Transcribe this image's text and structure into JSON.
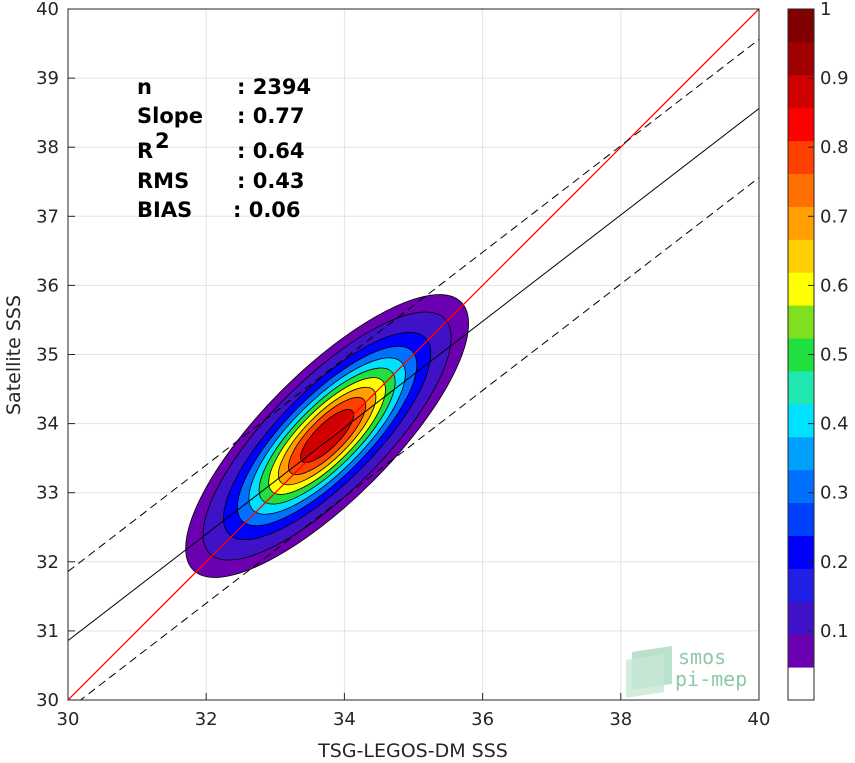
{
  "chart_data": {
    "type": "heatmap",
    "xlabel": "TSG-LEGOS-DM SSS",
    "ylabel": "Satellite SSS",
    "xlim": [
      30,
      40
    ],
    "ylim": [
      30,
      40
    ],
    "xticks": [
      "30",
      "32",
      "34",
      "36",
      "38",
      "40"
    ],
    "yticks": [
      "30",
      "31",
      "32",
      "33",
      "34",
      "35",
      "36",
      "37",
      "38",
      "39",
      "40"
    ],
    "grid": true,
    "stats": [
      {
        "name": "n",
        "value": ": 2394"
      },
      {
        "name": "Slope",
        "value": ": 0.77"
      },
      {
        "name": "R",
        "sup": "2",
        "value": ": 0.64"
      },
      {
        "name": "RMS",
        "value": ": 0.43"
      },
      {
        "name": "BIAS",
        "value": ": 0.06"
      }
    ],
    "reference_line": {
      "slope": 1,
      "intercept": 0,
      "color": "#ff0000"
    },
    "regression_line": {
      "x": [
        30,
        40
      ],
      "y": [
        30.86,
        38.56
      ],
      "color": "#000000"
    },
    "confidence_lines": [
      {
        "x": [
          30,
          40
        ],
        "y": [
          31.86,
          39.56
        ]
      },
      {
        "x": [
          30,
          40
        ],
        "y": [
          29.86,
          37.56
        ]
      }
    ],
    "density_center": [
      33.75,
      33.82
    ],
    "contour_levels": [
      0.05,
      0.1,
      0.2,
      0.3,
      0.4,
      0.5,
      0.6,
      0.7,
      0.8,
      0.9
    ],
    "colorbar": {
      "ticks": [
        "0.1",
        "0.2",
        "0.3",
        "0.4",
        "0.5",
        "0.6",
        "0.7",
        "0.8",
        "0.9",
        "1"
      ],
      "range": [
        0,
        1
      ],
      "colors": [
        "#ffffff",
        "#6a00b0",
        "#3f12c8",
        "#1f1fe6",
        "#0000ff",
        "#0040ff",
        "#0070ff",
        "#00a0ff",
        "#00e0ff",
        "#20e8b0",
        "#20e040",
        "#80e020",
        "#ffff00",
        "#ffd000",
        "#ffa000",
        "#ff7000",
        "#ff4000",
        "#ff0000",
        "#d00000",
        "#a00000",
        "#800000"
      ]
    }
  },
  "logo": {
    "line1": "smos",
    "line2": "pi-mep"
  }
}
